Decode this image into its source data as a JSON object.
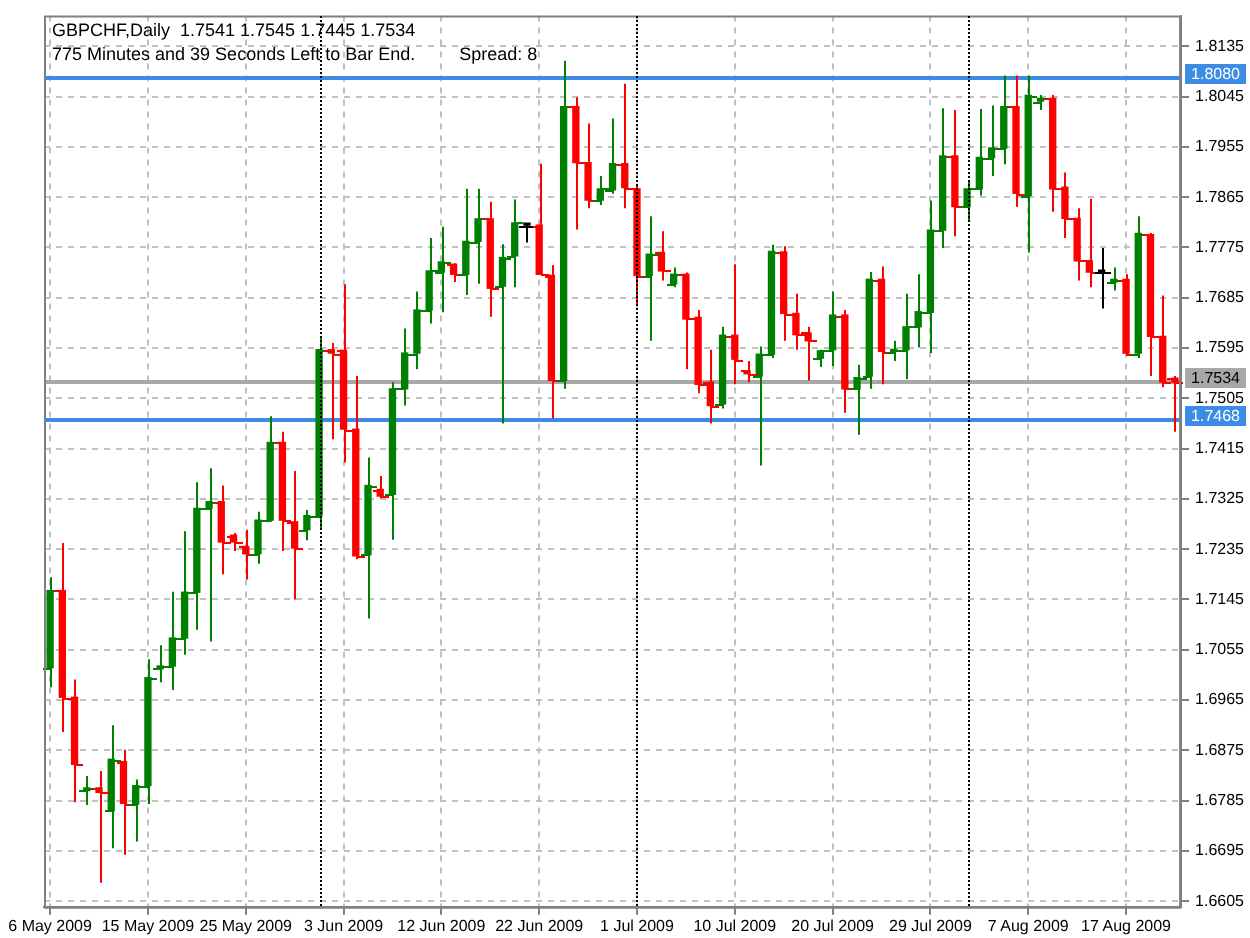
{
  "chart_data": {
    "type": "candlestick",
    "title": "GBPCHF,Daily  1.7541 1.7545 1.7445 1.7534",
    "subtitle": "775 Minutes and 39 Seconds Left to Bar End.",
    "annotations": [
      "Spread: 8"
    ],
    "categories": [
      "6 May 2009",
      null,
      null,
      null,
      null,
      null,
      null,
      null,
      "15 May 2009",
      null,
      null,
      null,
      null,
      null,
      null,
      null,
      "25 May 2009",
      null,
      null,
      null,
      null,
      null,
      null,
      null,
      "3 Jun 2009",
      null,
      null,
      null,
      null,
      null,
      null,
      null,
      "12 Jun 2009",
      null,
      null,
      null,
      null,
      null,
      null,
      null,
      "22 Jun 2009",
      null,
      null,
      null,
      null,
      null,
      null,
      null,
      "1 Jul 2009",
      null,
      null,
      null,
      null,
      null,
      null,
      null,
      "10 Jul 2009",
      null,
      null,
      null,
      null,
      null,
      null,
      null,
      "20 Jul 2009",
      null,
      null,
      null,
      null,
      null,
      null,
      null,
      "29 Jul 2009",
      null,
      null,
      null,
      null,
      null,
      null,
      null,
      "7 Aug 2009",
      null,
      null,
      null,
      null,
      null,
      null,
      null,
      "17 Aug 2009",
      null,
      null,
      null,
      null
    ],
    "ohlc": [
      [
        1.7023,
        1.7185,
        1.6988,
        1.7161
      ],
      [
        1.7161,
        1.7246,
        1.6908,
        1.697
      ],
      [
        1.697,
        1.7002,
        1.6782,
        1.685
      ],
      [
        1.6803,
        1.6829,
        1.6777,
        1.6808
      ],
      [
        1.6808,
        1.6838,
        1.6638,
        1.68
      ],
      [
        1.6767,
        1.692,
        1.67,
        1.6859
      ],
      [
        1.6855,
        1.6876,
        1.6688,
        1.678
      ],
      [
        1.6779,
        1.6823,
        1.6712,
        1.6812
      ],
      [
        1.6812,
        1.7038,
        1.6779,
        1.7005
      ],
      [
        1.7021,
        1.7063,
        1.6997,
        1.7026
      ],
      [
        1.7026,
        1.7159,
        1.6983,
        1.7076
      ],
      [
        1.7076,
        1.7267,
        1.7046,
        1.7158
      ],
      [
        1.7158,
        1.7355,
        1.7091,
        1.7308
      ],
      [
        1.7308,
        1.738,
        1.707,
        1.732
      ],
      [
        1.732,
        1.7349,
        1.719,
        1.7248
      ],
      [
        1.726,
        1.7264,
        1.7232,
        1.7248
      ],
      [
        1.724,
        1.727,
        1.7181,
        1.7227
      ],
      [
        1.7227,
        1.7302,
        1.7209,
        1.7287
      ],
      [
        1.7287,
        1.7473,
        1.7284,
        1.7426
      ],
      [
        1.7426,
        1.7445,
        1.7232,
        1.7287
      ],
      [
        1.7284,
        1.7375,
        1.7145,
        1.7237
      ],
      [
        1.727,
        1.7305,
        1.7251,
        1.7295
      ],
      [
        1.7295,
        1.7613,
        1.727,
        1.7592
      ],
      [
        1.7592,
        1.7604,
        1.7432,
        1.7586
      ],
      [
        1.7591,
        1.7709,
        1.739,
        1.745
      ],
      [
        1.745,
        1.7545,
        1.7217,
        1.7223
      ],
      [
        1.7225,
        1.7399,
        1.7111,
        1.7349
      ],
      [
        1.7342,
        1.7366,
        1.7326,
        1.733
      ],
      [
        1.7333,
        1.7534,
        1.7252,
        1.7522
      ],
      [
        1.7522,
        1.763,
        1.7492,
        1.7586
      ],
      [
        1.7586,
        1.7696,
        1.7557,
        1.7663
      ],
      [
        1.7663,
        1.7792,
        1.7639,
        1.7733
      ],
      [
        1.7731,
        1.7812,
        1.7659,
        1.7749
      ],
      [
        1.7745,
        1.7747,
        1.7713,
        1.7727
      ],
      [
        1.7727,
        1.788,
        1.769,
        1.7786
      ],
      [
        1.7786,
        1.788,
        1.771,
        1.7826
      ],
      [
        1.7826,
        1.7857,
        1.7651,
        1.7702
      ],
      [
        1.7706,
        1.7781,
        1.746,
        1.7757
      ],
      [
        1.776,
        1.7861,
        1.7704,
        1.7819
      ],
      [
        1.7815,
        1.7819,
        1.7784,
        1.7815
      ],
      [
        1.7815,
        1.7925,
        1.7727,
        1.7727
      ],
      [
        1.7725,
        1.7743,
        1.7469,
        1.7537
      ],
      [
        1.7537,
        1.8109,
        1.7522,
        1.8027
      ],
      [
        1.8027,
        1.8044,
        1.7807,
        1.7927
      ],
      [
        1.7927,
        1.7997,
        1.7845,
        1.786
      ],
      [
        1.786,
        1.7903,
        1.7851,
        1.788
      ],
      [
        1.7878,
        1.8006,
        1.7871,
        1.7925
      ],
      [
        1.7925,
        1.8068,
        1.7845,
        1.7882
      ],
      [
        1.788,
        1.7886,
        1.7674,
        1.7725
      ],
      [
        1.7725,
        1.7831,
        1.7608,
        1.7763
      ],
      [
        1.7766,
        1.7804,
        1.7716,
        1.7733
      ],
      [
        1.771,
        1.7739,
        1.7704,
        1.7727
      ],
      [
        1.7727,
        1.773,
        1.7557,
        1.7647
      ],
      [
        1.765,
        1.7663,
        1.7514,
        1.753
      ],
      [
        1.7534,
        1.7592,
        1.746,
        1.7492
      ],
      [
        1.7495,
        1.7633,
        1.7487,
        1.7618
      ],
      [
        1.7618,
        1.7745,
        1.753,
        1.7575
      ],
      [
        1.7554,
        1.7572,
        1.7534,
        1.7549
      ],
      [
        1.7545,
        1.7598,
        1.7385,
        1.7584
      ],
      [
        1.7584,
        1.778,
        1.7577,
        1.7768
      ],
      [
        1.7767,
        1.7777,
        1.7608,
        1.7657
      ],
      [
        1.7657,
        1.7692,
        1.7592,
        1.7619
      ],
      [
        1.7622,
        1.7633,
        1.7537,
        1.7608
      ],
      [
        1.7577,
        1.7592,
        1.7561,
        1.759
      ],
      [
        1.7592,
        1.7696,
        1.7563,
        1.7654
      ],
      [
        1.7654,
        1.7663,
        1.7479,
        1.7522
      ],
      [
        1.7522,
        1.7565,
        1.744,
        1.7542
      ],
      [
        1.7545,
        1.7731,
        1.7522,
        1.7718
      ],
      [
        1.7718,
        1.7741,
        1.753,
        1.7589
      ],
      [
        1.7589,
        1.7608,
        1.7572,
        1.7592
      ],
      [
        1.7592,
        1.7692,
        1.7539,
        1.7633
      ],
      [
        1.7633,
        1.7727,
        1.7596,
        1.766
      ],
      [
        1.7659,
        1.7859,
        1.7586,
        1.7806
      ],
      [
        1.7806,
        1.8024,
        1.7774,
        1.7939
      ],
      [
        1.7939,
        1.8021,
        1.7795,
        1.7848
      ],
      [
        1.7848,
        1.7894,
        1.7821,
        1.788
      ],
      [
        1.788,
        1.8023,
        1.7868,
        1.7936
      ],
      [
        1.7936,
        1.8029,
        1.7903,
        1.7953
      ],
      [
        1.7953,
        1.8083,
        1.7924,
        1.8027
      ],
      [
        1.8027,
        1.8083,
        1.7848,
        1.7872
      ],
      [
        1.7868,
        1.8083,
        1.7766,
        1.8047
      ],
      [
        1.8037,
        1.8048,
        1.8021,
        1.8042
      ],
      [
        1.8042,
        1.8048,
        1.7839,
        1.788
      ],
      [
        1.7883,
        1.7909,
        1.7792,
        1.7827
      ],
      [
        1.7827,
        1.7845,
        1.7716,
        1.7751
      ],
      [
        1.7751,
        1.7862,
        1.7704,
        1.7731
      ],
      [
        1.7731,
        1.7774,
        1.7666,
        1.7731
      ],
      [
        1.7713,
        1.7739,
        1.7698,
        1.7718
      ],
      [
        1.7718,
        1.7727,
        1.7581,
        1.7586
      ],
      [
        1.7586,
        1.7831,
        1.7577,
        1.78
      ],
      [
        1.7798,
        1.7801,
        1.7545,
        1.7616
      ],
      [
        1.7616,
        1.7689,
        1.7525,
        1.7534
      ],
      [
        1.7541,
        1.7545,
        1.7445,
        1.7534
      ]
    ],
    "colors": [
      "#008000",
      "#ff0000",
      "#ff0000",
      "#008000",
      "#ff0000",
      "#008000",
      "#ff0000",
      "#008000",
      "#008000",
      "#008000",
      "#008000",
      "#008000",
      "#008000",
      "#008000",
      "#ff0000",
      "#ff0000",
      "#ff0000",
      "#008000",
      "#008000",
      "#ff0000",
      "#ff0000",
      "#008000",
      "#008000",
      "#ff0000",
      "#ff0000",
      "#ff0000",
      "#008000",
      "#ff0000",
      "#008000",
      "#008000",
      "#008000",
      "#008000",
      "#008000",
      "#ff0000",
      "#008000",
      "#008000",
      "#ff0000",
      "#008000",
      "#008000",
      "#000000",
      "#ff0000",
      "#ff0000",
      "#008000",
      "#ff0000",
      "#ff0000",
      "#008000",
      "#008000",
      "#ff0000",
      "#ff0000",
      "#008000",
      "#ff0000",
      "#008000",
      "#ff0000",
      "#ff0000",
      "#ff0000",
      "#008000",
      "#ff0000",
      "#ff0000",
      "#008000",
      "#008000",
      "#ff0000",
      "#ff0000",
      "#ff0000",
      "#008000",
      "#008000",
      "#ff0000",
      "#008000",
      "#008000",
      "#ff0000",
      "#008000",
      "#008000",
      "#008000",
      "#008000",
      "#008000",
      "#ff0000",
      "#008000",
      "#008000",
      "#008000",
      "#008000",
      "#ff0000",
      "#008000",
      "#008000",
      "#ff0000",
      "#ff0000",
      "#ff0000",
      "#ff0000",
      "#000000",
      "#008000",
      "#ff0000",
      "#008000",
      "#ff0000",
      "#ff0000",
      "#ff0000"
    ],
    "ylim": [
      1.6595,
      1.819
    ],
    "yticks": [
      1.8135,
      1.8045,
      1.7955,
      1.7865,
      1.7775,
      1.7685,
      1.7595,
      1.7505,
      1.7415,
      1.7325,
      1.7235,
      1.7145,
      1.7055,
      1.6965,
      1.6875,
      1.6785,
      1.6695,
      1.6605
    ],
    "grid": true,
    "legend": false,
    "ref_lines": [
      {
        "axis": "y",
        "value": 1.808,
        "label": "1.8080",
        "color": "#3c8ce6"
      },
      {
        "axis": "y",
        "value": 1.7468,
        "label": "1.7468",
        "color": "#3c8ce6"
      },
      {
        "axis": "y",
        "value": 1.7534,
        "label": "1.7534",
        "color": "#a8a8a8"
      }
    ]
  }
}
